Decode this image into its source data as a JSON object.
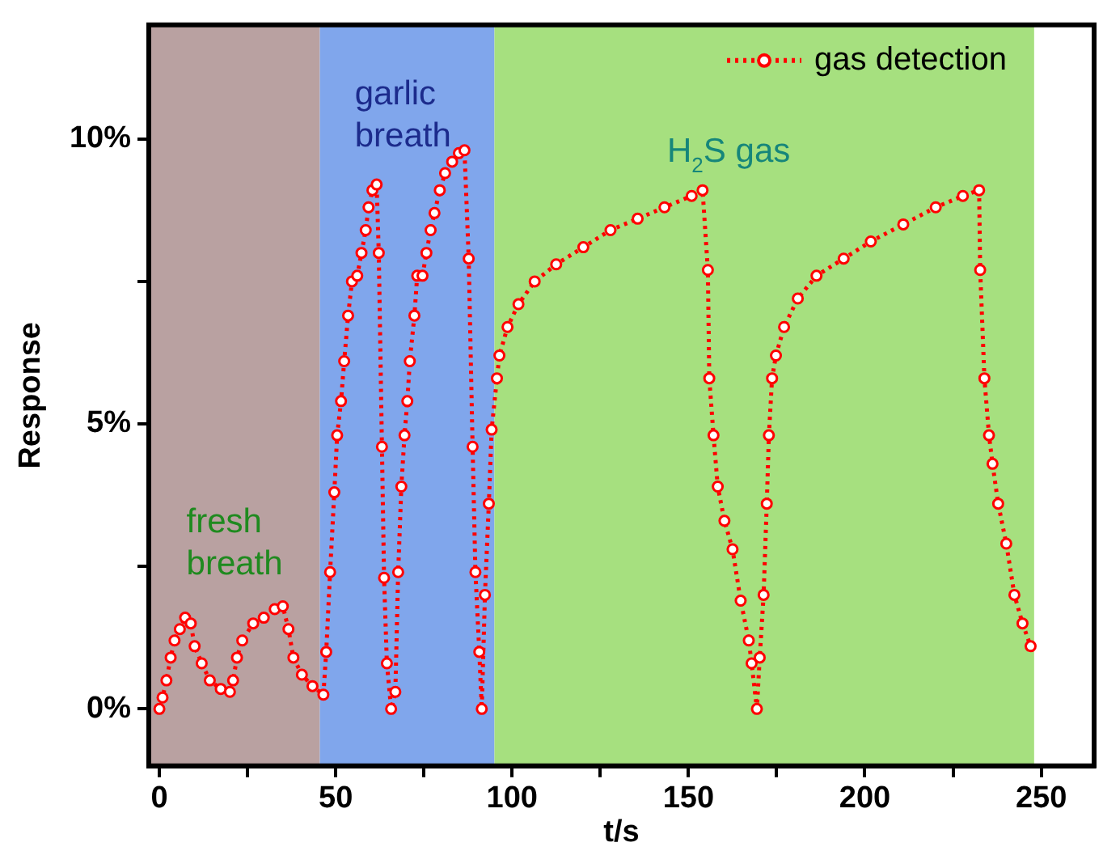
{
  "chart_data": {
    "type": "line",
    "xlabel": "t/s",
    "ylabel": "Response",
    "xlim": [
      -3,
      265
    ],
    "ylim": [
      -1,
      12
    ],
    "xticks": [
      0,
      {
        "value": 25,
        "label": null
      },
      50,
      {
        "value": 75,
        "label": null
      },
      100,
      {
        "value": 125,
        "label": null
      },
      150,
      {
        "value": 175,
        "label": null
      },
      200,
      {
        "value": 225,
        "label": null
      },
      250
    ],
    "yticks": [
      {
        "value": 0,
        "label": "0%"
      },
      {
        "value": 2.5,
        "label": null
      },
      {
        "value": 5,
        "label": "5%"
      },
      {
        "value": 7.5,
        "label": null
      },
      {
        "value": 10,
        "label": "10%"
      }
    ],
    "bands": [
      {
        "axis": "x",
        "from": -3,
        "to": 45.5,
        "label": "fresh breath",
        "color": "#b9a1a1"
      },
      {
        "axis": "x",
        "from": 45.5,
        "to": 95,
        "label": "garlic breath",
        "color": "#80a6ec"
      },
      {
        "axis": "x",
        "from": 95,
        "to": 248,
        "label": "H$_{2}$S gas",
        "color": "#a6e07f"
      }
    ],
    "legend": "top right",
    "marker": "circle",
    "line_style": "dotted",
    "grid": false,
    "series": [
      {
        "name": "gas detection",
        "color": "#ff0000",
        "x": [
          0,
          0.9,
          2,
          3.2,
          4.3,
          5.8,
          7.3,
          8.9,
          10,
          12,
          14.3,
          17.4,
          20,
          20.9,
          22,
          23.5,
          26.6,
          29.6,
          32.7,
          35,
          36.6,
          38,
          40.4,
          43.4,
          46.5,
          47.3,
          48.4,
          49.6,
          50.4,
          51.5,
          52.4,
          53.5,
          54.6,
          56.1,
          57.3,
          58.5,
          59.3,
          60.4,
          61.6,
          62.2,
          63.1,
          63.7,
          64.5,
          65.7,
          66.9,
          67.7,
          68.6,
          69.5,
          70.3,
          71,
          72.3,
          73.1,
          74.6,
          75.7,
          76.9,
          78,
          79.5,
          81,
          83,
          84.9,
          86.5,
          87.7,
          88.8,
          89.6,
          90.7,
          91.4,
          92.3,
          93.4,
          94.2,
          95.7,
          96.4,
          98.7,
          101.8,
          106.4,
          112.5,
          120.2,
          127.9,
          135.6,
          143.2,
          150.9,
          154,
          155.5,
          155.9,
          157.1,
          158.3,
          160.2,
          162.5,
          164.8,
          167.1,
          167.9,
          169.4,
          170.2,
          171.3,
          172.2,
          172.8,
          173.7,
          174.8,
          177.1,
          181,
          186.3,
          194,
          201.7,
          210.9,
          220.1,
          227.8,
          232.4,
          232.7,
          233.9,
          235.2,
          236.2,
          237.8,
          240.1,
          242.4,
          244.7,
          247
        ],
        "values": [
          0,
          0.2,
          0.5,
          0.9,
          1.2,
          1.4,
          1.6,
          1.5,
          1.1,
          0.8,
          0.5,
          0.35,
          0.3,
          0.5,
          0.9,
          1.2,
          1.5,
          1.6,
          1.75,
          1.8,
          1.4,
          0.9,
          0.6,
          0.4,
          0.25,
          1,
          2.4,
          3.8,
          4.8,
          5.4,
          6.1,
          6.9,
          7.5,
          7.6,
          8,
          8.4,
          8.8,
          9.1,
          9.2,
          8,
          4.6,
          2.3,
          0.8,
          0,
          0.3,
          2.4,
          3.9,
          4.8,
          5.4,
          6.1,
          6.9,
          7.6,
          7.6,
          8,
          8.4,
          8.7,
          9.1,
          9.4,
          9.6,
          9.75,
          9.8,
          7.9,
          4.6,
          2.4,
          1,
          0,
          2,
          3.6,
          4.9,
          5.8,
          6.2,
          6.7,
          7.1,
          7.5,
          7.8,
          8.1,
          8.4,
          8.6,
          8.8,
          9,
          9.1,
          7.7,
          5.8,
          4.8,
          3.9,
          3.3,
          2.8,
          1.9,
          1.2,
          0.8,
          0,
          0.9,
          2,
          3.6,
          4.8,
          5.8,
          6.2,
          6.7,
          7.2,
          7.6,
          7.9,
          8.2,
          8.5,
          8.8,
          9,
          9.1,
          7.7,
          5.8,
          4.8,
          4.3,
          3.6,
          2.9,
          2,
          1.5,
          1.1
        ]
      }
    ]
  }
}
